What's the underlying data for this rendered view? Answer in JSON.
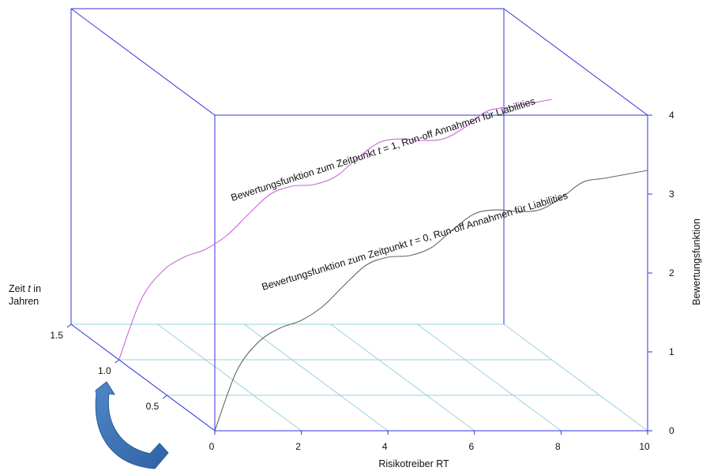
{
  "chart_data": {
    "type": "line",
    "xlabel": "Risikotreiber RT",
    "ylabel": "Bewertungsfunktion",
    "zlabel_line1": "Zeit",
    "zlabel_var": "t",
    "zlabel_after": " in",
    "zlabel_line2": "Jahren",
    "x_ticks": [
      "0",
      "2",
      "4",
      "6",
      "8",
      "10"
    ],
    "y_ticks": [
      "0",
      "1",
      "2",
      "3",
      "4"
    ],
    "z_ticks": [
      "0.5",
      "1.0",
      "1.5"
    ],
    "xlim": [
      0,
      10
    ],
    "ylim": [
      0,
      4
    ],
    "zlim": [
      0,
      1.5
    ],
    "series": [
      {
        "t": 0,
        "color": "#666666",
        "label_pre": "Bewertungsfunktion zum Zeitpunkt ",
        "label_var": "t",
        "label_post": " = 0, Run-off Annahmen für Liabilities",
        "x": [
          0,
          0.5,
          1,
          1.5,
          2,
          2.5,
          3,
          3.5,
          4,
          4.5,
          5,
          5.5,
          6,
          6.5,
          7,
          7.5,
          8,
          8.5,
          9,
          9.5,
          10
        ],
        "y": [
          0,
          0.75,
          1.12,
          1.3,
          1.4,
          1.58,
          1.85,
          2.1,
          2.2,
          2.22,
          2.32,
          2.55,
          2.75,
          2.8,
          2.78,
          2.8,
          2.95,
          3.15,
          3.2,
          3.25,
          3.3
        ]
      },
      {
        "t": 1,
        "color": "#cc66dd",
        "label_pre": "Bewertungsfunktion zum Zeitpunkt ",
        "label_var": "t",
        "label_post": " = 1, Run-off Annahmen für Liabilities",
        "x": [
          0,
          0.5,
          1,
          1.5,
          2,
          2.5,
          3,
          3.5,
          4,
          4.5,
          5,
          5.5,
          6,
          6.5,
          7,
          7.5,
          8,
          8.5,
          9,
          9.5,
          10
        ],
        "y": [
          0,
          0.75,
          1.12,
          1.3,
          1.4,
          1.58,
          1.85,
          2.1,
          2.2,
          2.22,
          2.32,
          2.55,
          2.75,
          2.8,
          2.78,
          2.8,
          2.95,
          3.15,
          3.2,
          3.25,
          3.3
        ]
      }
    ],
    "colors": {
      "box": "#3333dd",
      "grid": "#9ad0e0",
      "arrow": "#3a72b8"
    },
    "legend": "none",
    "grid": true
  }
}
